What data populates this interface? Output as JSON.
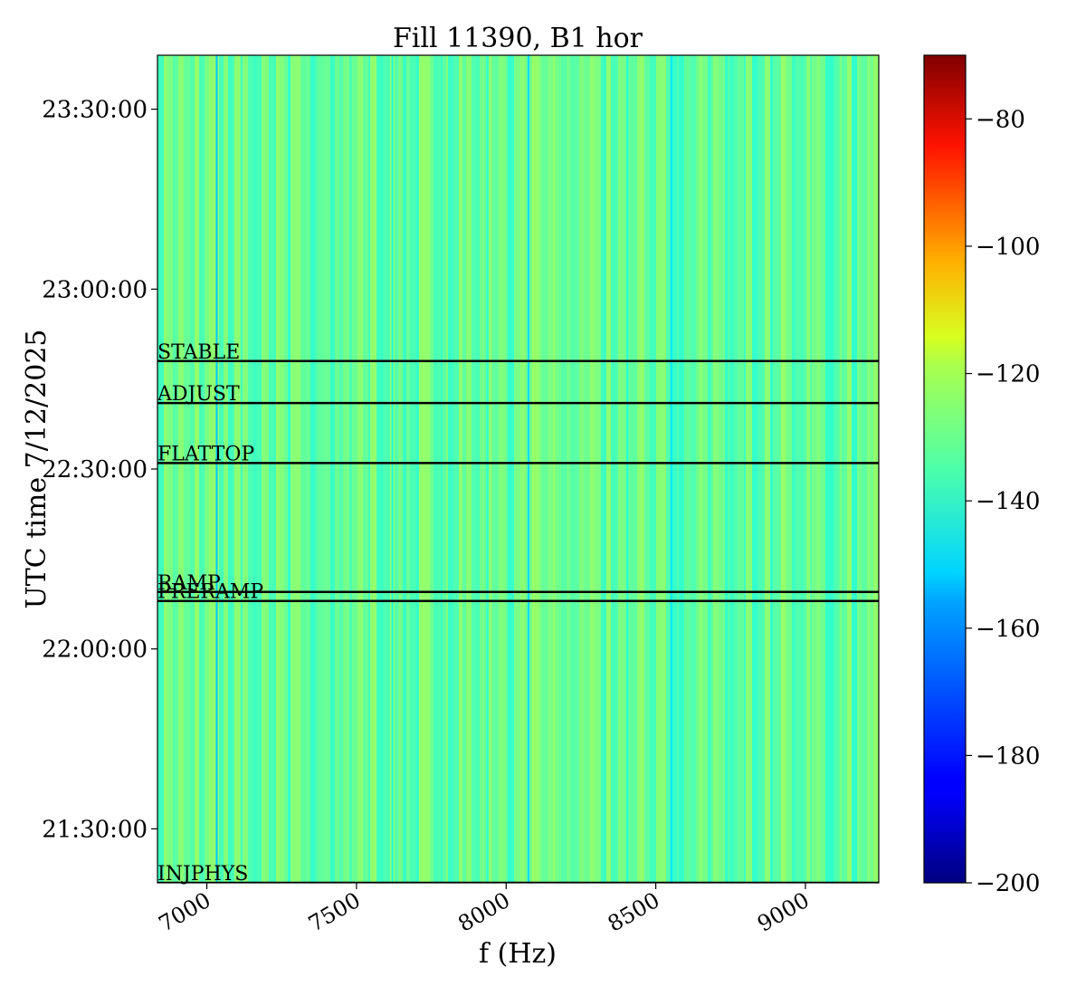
{
  "chart_data": {
    "type": "heatmap",
    "title": "Fill 11390, B1 hor",
    "xlabel": "f (Hz)",
    "ylabel": "UTC time 7/12/2025",
    "xlim": [
      6835,
      9245
    ],
    "ylim_seconds_of_day": [
      76860,
      85140
    ],
    "x_ticks": [
      7000,
      7500,
      8000,
      8500,
      9000
    ],
    "y_ticks": [
      {
        "label": "21:30:00",
        "seconds": 77400
      },
      {
        "label": "22:00:00",
        "seconds": 79200
      },
      {
        "label": "22:30:00",
        "seconds": 81000
      },
      {
        "label": "23:00:00",
        "seconds": 82800
      },
      {
        "label": "23:30:00",
        "seconds": 84600
      }
    ],
    "colorbar": {
      "colormap": "jet",
      "range": [
        -200,
        -70
      ],
      "ticks": [
        -200,
        -180,
        -160,
        -140,
        -120,
        -100,
        -80
      ]
    },
    "background_level": -140,
    "spectral_lines": [
      {
        "f": 7033,
        "value": -158
      },
      {
        "f": 7620,
        "value": -148
      },
      {
        "f": 8075,
        "value": -156
      },
      {
        "f": 8405,
        "value": -148
      },
      {
        "f": 8552,
        "value": -154
      },
      {
        "f": 9090,
        "value": -146
      }
    ],
    "beam_modes": [
      {
        "label": "INJPHYS",
        "time": "21:04:00",
        "seconds": 75840
      },
      {
        "label": "PRERAMP",
        "time": "22:08:00",
        "seconds": 79680
      },
      {
        "label": "RAMP",
        "time": "22:09:30",
        "seconds": 79770
      },
      {
        "label": "FLATTOP",
        "time": "22:31:00",
        "seconds": 81060
      },
      {
        "label": "ADJUST",
        "time": "22:41:00",
        "seconds": 81660
      },
      {
        "label": "STABLE",
        "time": "22:48:00",
        "seconds": 82080
      }
    ]
  }
}
